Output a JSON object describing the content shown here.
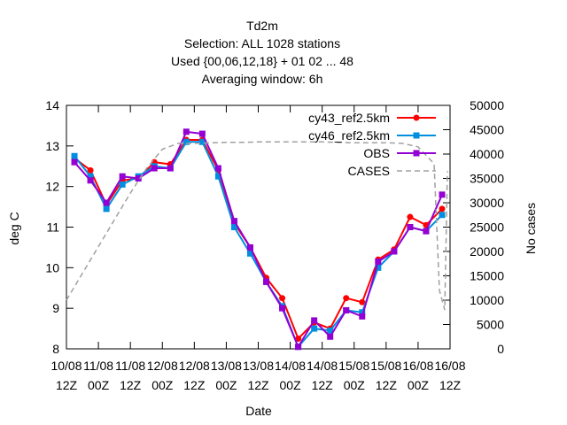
{
  "chart_data": {
    "type": "line",
    "title_lines": [
      "Td2m",
      "Selection: ALL    1028 stations",
      "Used {00,06,12,18} + 01 02 ... 48",
      "Averaging window:  6h"
    ],
    "xlabel": "Date",
    "ylabel": "deg C",
    "y2label": "No cases",
    "ylim": [
      8,
      14
    ],
    "y2lim": [
      0,
      50000
    ],
    "yticks": [
      "8",
      "9",
      "10",
      "11",
      "12",
      "13",
      "14"
    ],
    "y2ticks": [
      "0",
      "5000",
      "10000",
      "15000",
      "20000",
      "25000",
      "30000",
      "35000",
      "40000",
      "45000",
      "50000"
    ],
    "xticks": [
      [
        "10/08",
        "12Z"
      ],
      [
        "11/08",
        "00Z"
      ],
      [
        "11/08",
        "12Z"
      ],
      [
        "12/08",
        "00Z"
      ],
      [
        "12/08",
        "12Z"
      ],
      [
        "13/08",
        "00Z"
      ],
      [
        "13/08",
        "12Z"
      ],
      [
        "14/08",
        "00Z"
      ],
      [
        "14/08",
        "12Z"
      ],
      [
        "15/08",
        "00Z"
      ],
      [
        "15/08",
        "12Z"
      ],
      [
        "16/08",
        "00Z"
      ],
      [
        "16/08",
        "12Z"
      ]
    ],
    "grid": false,
    "legend_position": "top-right",
    "x_hours": [
      3,
      9,
      15,
      21,
      27,
      33,
      39,
      45,
      51,
      57,
      63,
      69,
      75,
      81,
      87,
      93,
      99,
      105,
      111,
      117,
      123,
      129,
      135,
      141
    ],
    "series": [
      {
        "name": "cy43_ref2.5km",
        "color": "#ff0000",
        "marker": "circle",
        "axis": "y1",
        "values": [
          12.7,
          12.4,
          11.55,
          12.15,
          12.2,
          12.6,
          12.55,
          13.15,
          13.15,
          12.4,
          11.1,
          10.5,
          9.75,
          9.25,
          8.25,
          8.65,
          8.5,
          9.25,
          9.15,
          10.2,
          10.45,
          11.25,
          11.05,
          11.45
        ]
      },
      {
        "name": "cy46_ref2.5km",
        "color": "#008fe0",
        "marker": "square",
        "axis": "y1",
        "values": [
          12.75,
          12.25,
          11.45,
          12.05,
          12.25,
          12.5,
          12.45,
          13.1,
          13.1,
          12.25,
          11.0,
          10.35,
          9.65,
          9.05,
          8.05,
          8.5,
          8.45,
          8.95,
          8.9,
          10.0,
          10.4,
          11.0,
          10.9,
          11.3
        ]
      },
      {
        "name": "OBS",
        "color": "#9400d3",
        "marker": "square",
        "axis": "y1",
        "values": [
          12.6,
          12.15,
          11.6,
          12.25,
          12.2,
          12.45,
          12.45,
          13.35,
          13.3,
          12.45,
          11.15,
          10.5,
          9.65,
          9.0,
          8.05,
          8.7,
          8.3,
          8.95,
          8.8,
          10.15,
          10.4,
          11.0,
          10.9,
          11.8
        ]
      },
      {
        "name": "CASES",
        "color": "#a0a0a0",
        "marker": "none",
        "dashed": true,
        "axis": "y2",
        "x_hours": [
          0,
          6,
          12,
          18,
          24,
          30,
          36,
          42,
          48,
          54,
          60,
          66,
          72,
          78,
          84,
          90,
          96,
          102,
          108,
          114,
          120,
          126,
          132,
          138,
          140,
          142,
          143
        ],
        "values": [
          10000,
          15500,
          21000,
          26500,
          32000,
          37000,
          41000,
          42200,
          42200,
          42300,
          42400,
          42400,
          42500,
          42500,
          42500,
          42500,
          42500,
          42400,
          42300,
          42300,
          42300,
          42200,
          41500,
          38000,
          12000,
          8000,
          36500
        ]
      }
    ]
  }
}
